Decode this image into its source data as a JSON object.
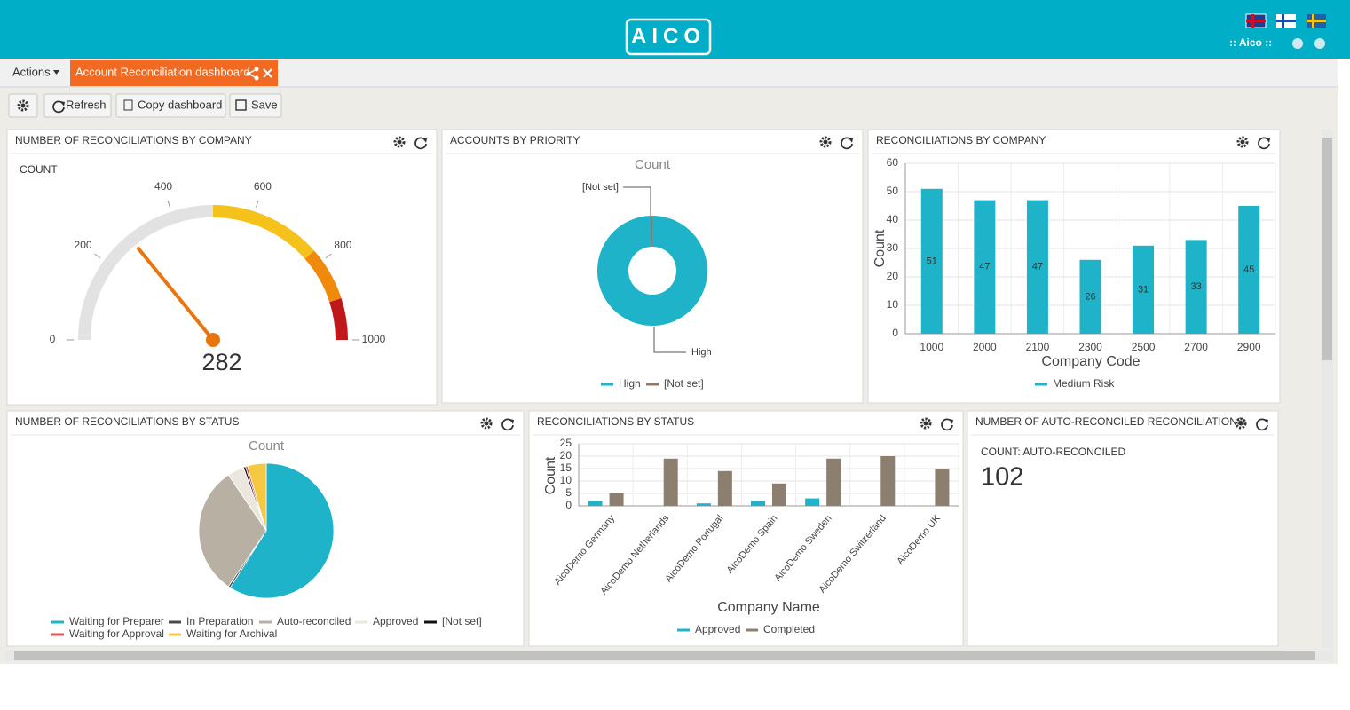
{
  "app": {
    "logo": "AICO",
    "user": ":: Aico ::",
    "tabs": {
      "actions": "Actions",
      "active": "Account Reconciliation dashboard"
    },
    "toolbar": [
      "Refresh",
      "Copy dashboard",
      "Save"
    ]
  },
  "chart_data": [
    {
      "type": "gauge",
      "title": "NUMBER OF RECONCILIATIONS BY COMPANY",
      "label": "COUNT",
      "value": 282,
      "color": "#e8750e",
      "ylim": [
        0,
        1000
      ],
      "yticks": [
        0,
        200,
        400,
        600,
        800,
        1000
      ],
      "bands": [
        {
          "from": 0,
          "to": 500,
          "color": "#e2e2e2"
        },
        {
          "from": 500,
          "to": 770,
          "color": "#f5c21b"
        },
        {
          "from": 770,
          "to": 900,
          "color": "#f08a0c"
        },
        {
          "from": 900,
          "to": 1000,
          "color": "#c0171b"
        }
      ]
    },
    {
      "type": "donut",
      "title": "ACCOUNTS BY PRIORITY",
      "subtitle": "Count",
      "categories": [
        "High",
        "[Not set]"
      ],
      "values": [
        99.5,
        0.5
      ],
      "colors": [
        "#1fb3c9",
        "#8a7b6c"
      ]
    },
    {
      "type": "bar",
      "title": "RECONCILIATIONS BY COMPANY",
      "x_label": "Company Code",
      "y_label": "Count",
      "categories": [
        "1000",
        "2000",
        "2100",
        "2300",
        "2500",
        "2700",
        "2900"
      ],
      "series": [
        {
          "name": "Medium Risk",
          "color": "#1fb3c9",
          "values": [
            51,
            47,
            47,
            26,
            31,
            33,
            45
          ]
        }
      ],
      "ylim": [
        0,
        60
      ],
      "yticks": [
        0,
        10,
        20,
        30,
        40,
        50,
        60
      ],
      "grid": true
    },
    {
      "type": "pie",
      "title": "NUMBER OF RECONCILIATIONS BY STATUS",
      "subtitle": "Count",
      "categories": [
        "Waiting for Preparer",
        "In Preparation",
        "Auto-reconciled",
        "Approved",
        "[Not set]",
        "Waiting for Approval",
        "Waiting for Archival"
      ],
      "values": [
        59,
        0.5,
        31,
        4,
        0.5,
        0.5,
        4.5
      ],
      "colors": [
        "#1fb3c9",
        "#4a4a4a",
        "#b8b0a3",
        "#ebe7df",
        "#111111",
        "#e35050",
        "#f5c842"
      ]
    },
    {
      "type": "grouped_bar",
      "title": "RECONCILIATIONS BY STATUS",
      "x_label": "Company Name",
      "y_label": "Count",
      "categories": [
        "AicoDemo Germany",
        "AicoDemo Netherlands",
        "AicoDemo Portugal",
        "AicoDemo Spain",
        "AicoDemo Sweden",
        "AicoDemo Switzerland",
        "AicoDemo UK"
      ],
      "series": [
        {
          "name": "Approved",
          "color": "#1fb3c9",
          "values": [
            2,
            0,
            1,
            2,
            3,
            0,
            0
          ]
        },
        {
          "name": "Completed",
          "color": "#8c7f70",
          "values": [
            5,
            19,
            14,
            9,
            19,
            20,
            15
          ]
        }
      ],
      "ylim": [
        0,
        25
      ],
      "yticks": [
        0,
        5,
        10,
        15,
        20,
        25
      ],
      "grid": true
    },
    {
      "type": "kpi",
      "title": "NUMBER OF AUTO-RECONCILED RECONCILIATIONS",
      "label": "COUNT: AUTO-RECONCILED",
      "value": 102
    }
  ]
}
